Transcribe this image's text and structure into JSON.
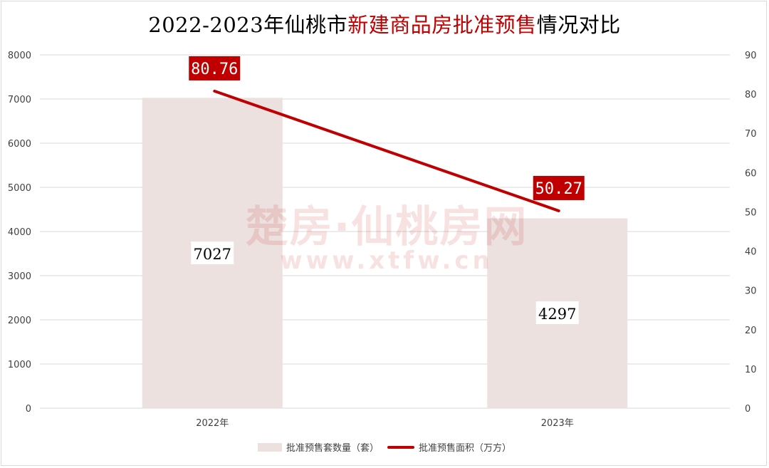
{
  "title": {
    "part1": "2022-2023年仙桃市",
    "part2": "新建商品房批准预售",
    "part3": "情况对比"
  },
  "watermark": {
    "brand": "楚房·仙桃房网",
    "url": "www.xtfw.cn"
  },
  "colors": {
    "bar": "#ece1df",
    "line": "#c00000",
    "title_accent": "#c00000",
    "grid": "#d9d9d9"
  },
  "chart_data": {
    "type": "bar",
    "categories": [
      "2022年",
      "2023年"
    ],
    "series": [
      {
        "name": "批准预售套数量（套）",
        "type": "bar",
        "axis": "left",
        "values": [
          7027,
          4297
        ]
      },
      {
        "name": "批准预售面积（万方）",
        "type": "line",
        "axis": "right",
        "values": [
          80.76,
          50.27
        ]
      }
    ],
    "bar_labels": [
      "7027",
      "4297"
    ],
    "line_labels": [
      "80.76",
      "50.27"
    ],
    "ylim_left": [
      0,
      8000
    ],
    "yticks_left": [
      "0",
      "1000",
      "2000",
      "3000",
      "4000",
      "5000",
      "6000",
      "7000",
      "8000"
    ],
    "ylim_right": [
      0,
      90
    ],
    "yticks_right": [
      "0",
      "10",
      "20",
      "30",
      "40",
      "50",
      "60",
      "70",
      "80",
      "90"
    ],
    "grid": true,
    "legend_position": "bottom"
  }
}
